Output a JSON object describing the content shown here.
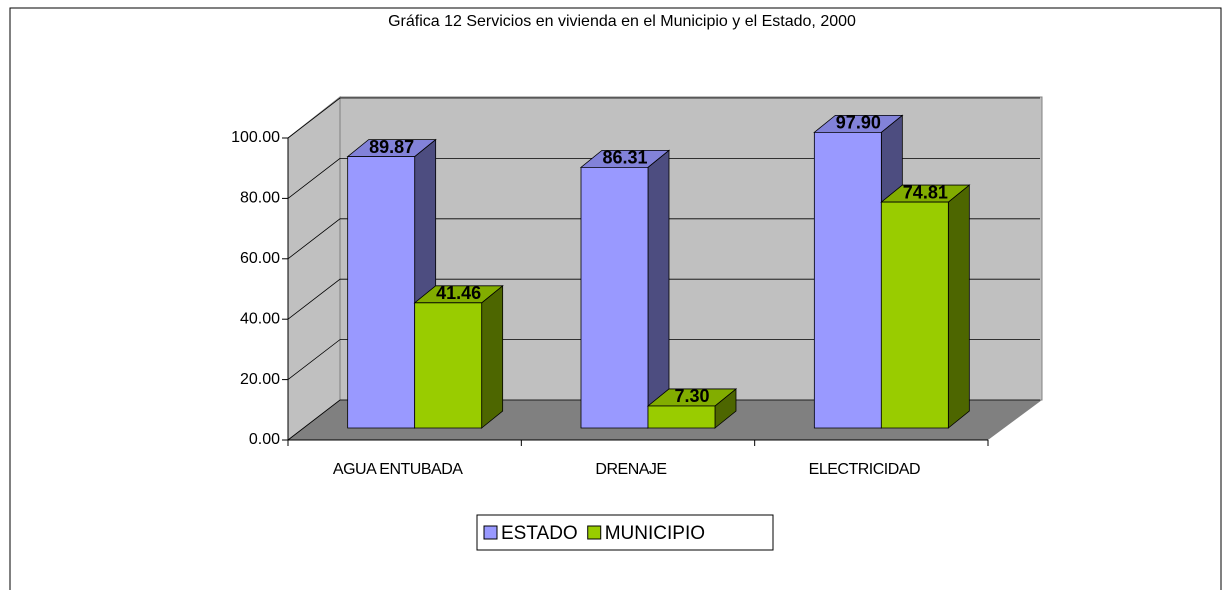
{
  "chart_data": {
    "type": "bar3d",
    "title": "Gráfica 12 Servicios en vivienda en el Municipio y el Estado, 2000",
    "categories": [
      "AGUA ENTUBADA",
      "DRENAJE",
      "ELECTRICIDAD"
    ],
    "series": [
      {
        "name": "ESTADO",
        "color": "#9999ff",
        "values": [
          89.87,
          86.31,
          97.9
        ],
        "value_labels": [
          "89.87",
          "86.31",
          "97.90"
        ]
      },
      {
        "name": "MUNICIPIO",
        "color": "#99cc00",
        "values": [
          41.46,
          7.3,
          74.81
        ],
        "value_labels": [
          "41.46",
          "7.30",
          "74.81"
        ]
      }
    ],
    "ylim": [
      0,
      100
    ],
    "yticks": [
      {
        "value": 0,
        "label": "0.00"
      },
      {
        "value": 20,
        "label": "20.00"
      },
      {
        "value": 40,
        "label": "40.00"
      },
      {
        "value": 60,
        "label": "60.00"
      },
      {
        "value": 80,
        "label": "80.00"
      },
      {
        "value": 100,
        "label": "100.00"
      }
    ],
    "grid": true,
    "legend": "bottom"
  }
}
